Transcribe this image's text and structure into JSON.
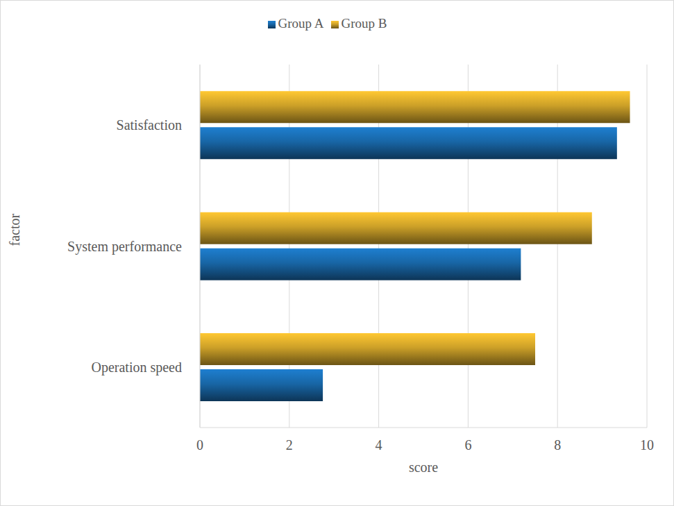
{
  "chart_data": {
    "type": "bar",
    "orientation": "horizontal",
    "x_label": "score",
    "y_label": "factor",
    "categories": [
      "Satisfaction",
      "System performance",
      "Operation speed"
    ],
    "series": [
      {
        "name": "Group B",
        "color": "#FFC832",
        "values": [
          9.62,
          8.77,
          7.5
        ]
      },
      {
        "name": "Group A",
        "color": "#1E7FD0",
        "values": [
          9.33,
          7.18,
          2.75
        ]
      }
    ],
    "xlim": [
      0,
      10
    ],
    "xticks": [
      0,
      2,
      4,
      6,
      8,
      10
    ],
    "grid": true,
    "legend": "top"
  }
}
